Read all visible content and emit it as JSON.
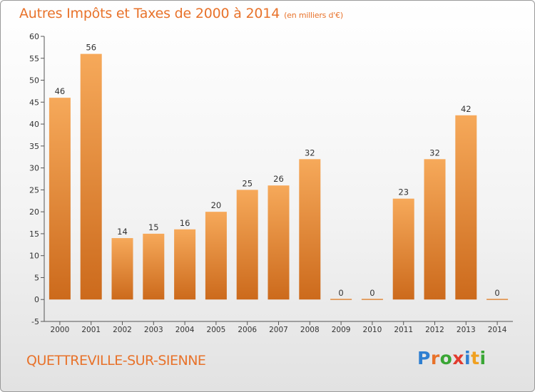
{
  "title": {
    "main": "Autres Impôts et Taxes de 2000 à 2014",
    "unit": "(en milliers d'€)"
  },
  "commune": "QUETTREVILLE-SUR-SIENNE",
  "logo": {
    "letters": [
      "P",
      "r",
      "o",
      "x",
      "i",
      "t",
      "i"
    ],
    "colors": [
      "#2f7fd1",
      "#e8722a",
      "#3aa635",
      "#e23b2e",
      "#2f7fd1",
      "#f0a020",
      "#3aa635"
    ]
  },
  "colors": {
    "accent": "#e8722a",
    "bar_top": "#f6a95a",
    "bar_bottom": "#cc6a1c"
  },
  "chart_data": {
    "type": "bar",
    "categories": [
      "2000",
      "2001",
      "2002",
      "2003",
      "2004",
      "2005",
      "2006",
      "2007",
      "2008",
      "2009",
      "2010",
      "2011",
      "2012",
      "2013",
      "2014"
    ],
    "values": [
      46,
      56,
      14,
      15,
      16,
      20,
      25,
      26,
      32,
      0,
      0,
      23,
      32,
      42,
      0
    ],
    "ylim": [
      -5,
      60
    ],
    "yticks": [
      -5,
      0,
      5,
      10,
      15,
      20,
      25,
      30,
      35,
      40,
      45,
      50,
      55,
      60
    ],
    "grid": false,
    "xlabel": "",
    "ylabel": ""
  }
}
